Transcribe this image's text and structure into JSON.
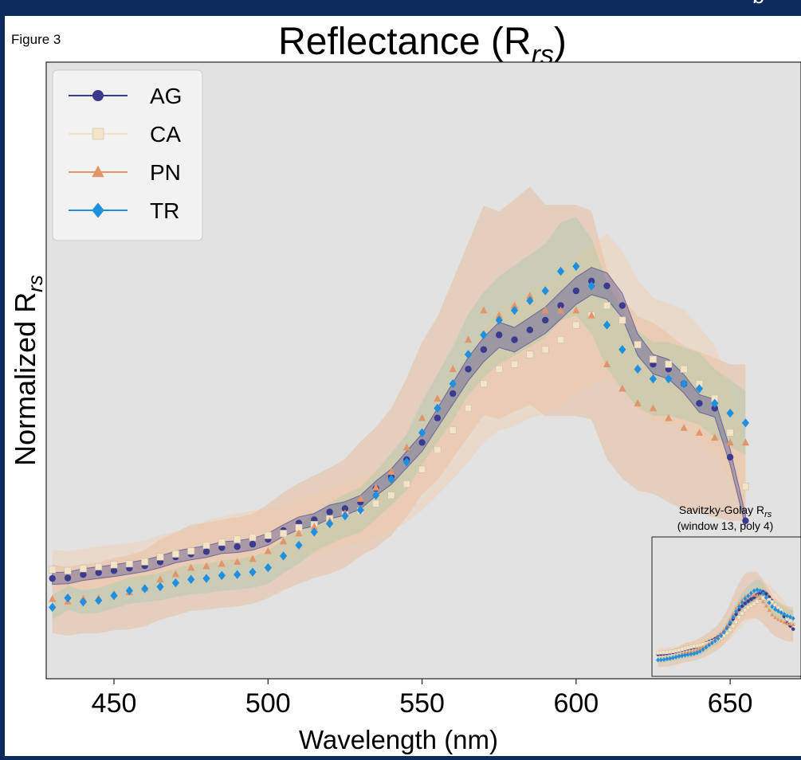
{
  "figure_label": "Figure 3",
  "corner_glyph": "b",
  "chart_data": [
    {
      "type": "scatter",
      "title": "Reflectance (R",
      "title_sub": "rs",
      "title_end": ")",
      "xlabel": "Wavelength (nm)",
      "ylabel": "Normalized R",
      "ylabel_sub": "rs",
      "xlim": [
        428,
        673
      ],
      "ylim": [
        0,
        1
      ],
      "y_ticks_shown": false,
      "xticks": [
        450,
        500,
        550,
        600,
        650
      ],
      "grid": false,
      "legend_position": "top-left",
      "x": [
        430,
        435,
        440,
        445,
        450,
        455,
        460,
        465,
        470,
        475,
        480,
        485,
        490,
        495,
        500,
        505,
        510,
        515,
        520,
        525,
        530,
        535,
        540,
        545,
        550,
        555,
        560,
        565,
        570,
        575,
        580,
        585,
        590,
        595,
        600,
        605,
        610,
        615,
        620,
        625,
        630,
        635,
        640,
        645,
        650,
        655
      ],
      "series": [
        {
          "name": "AG",
          "color": "#3b3a8f",
          "marker": "circle",
          "values": [
            0.142,
            0.143,
            0.15,
            0.154,
            0.158,
            0.163,
            0.168,
            0.176,
            0.186,
            0.192,
            0.197,
            0.205,
            0.207,
            0.212,
            0.222,
            0.24,
            0.255,
            0.262,
            0.278,
            0.285,
            0.298,
            0.326,
            0.35,
            0.385,
            0.42,
            0.47,
            0.52,
            0.57,
            0.61,
            0.64,
            0.63,
            0.65,
            0.67,
            0.7,
            0.73,
            0.75,
            0.74,
            0.7,
            0.62,
            0.58,
            0.57,
            0.54,
            0.5,
            0.49,
            0.39,
            0.26
          ]
        },
        {
          "name": "CA",
          "color": "#f3e4c8",
          "marker": "square",
          "values": [
            0.16,
            0.158,
            0.162,
            0.166,
            0.17,
            0.172,
            0.176,
            0.186,
            0.192,
            0.198,
            0.21,
            0.216,
            0.222,
            0.226,
            0.23,
            0.234,
            0.246,
            0.252,
            0.264,
            0.272,
            0.28,
            0.295,
            0.312,
            0.335,
            0.365,
            0.405,
            0.445,
            0.49,
            0.54,
            0.57,
            0.58,
            0.6,
            0.61,
            0.63,
            0.66,
            0.68,
            0.7,
            0.67,
            0.62,
            0.59,
            0.58,
            0.57,
            0.54,
            0.51,
            0.44,
            0.33
          ]
        },
        {
          "name": "PN",
          "color": "#e2956b",
          "marker": "triangle",
          "values": [
            0.1,
            0.095,
            0.101,
            0.102,
            0.11,
            0.114,
            0.122,
            0.14,
            0.151,
            0.164,
            0.167,
            0.172,
            0.176,
            0.182,
            0.198,
            0.218,
            0.234,
            0.248,
            0.26,
            0.275,
            0.305,
            0.328,
            0.36,
            0.41,
            0.47,
            0.51,
            0.57,
            0.63,
            0.69,
            0.68,
            0.7,
            0.72,
            0.69,
            0.69,
            0.69,
            0.68,
            0.58,
            0.53,
            0.5,
            0.49,
            0.47,
            0.45,
            0.44,
            0.43,
            0.42,
            0.42
          ]
        },
        {
          "name": "TR",
          "color": "#1f8fe0",
          "marker": "diamond",
          "values": [
            0.083,
            0.102,
            0.094,
            0.097,
            0.107,
            0.117,
            0.121,
            0.125,
            0.133,
            0.14,
            0.142,
            0.148,
            0.15,
            0.155,
            0.164,
            0.188,
            0.21,
            0.237,
            0.254,
            0.27,
            0.282,
            0.312,
            0.345,
            0.38,
            0.44,
            0.49,
            0.54,
            0.6,
            0.64,
            0.67,
            0.69,
            0.71,
            0.73,
            0.77,
            0.78,
            0.74,
            0.66,
            0.61,
            0.57,
            0.55,
            0.55,
            0.54,
            0.53,
            0.5,
            0.48,
            0.46
          ]
        }
      ],
      "bands": [
        {
          "name": "AG",
          "color": "#3b3a8f",
          "lower": [
            0.13,
            0.131,
            0.138,
            0.142,
            0.146,
            0.151,
            0.156,
            0.164,
            0.174,
            0.18,
            0.185,
            0.193,
            0.195,
            0.2,
            0.21,
            0.228,
            0.242,
            0.249,
            0.264,
            0.271,
            0.284,
            0.311,
            0.334,
            0.368,
            0.402,
            0.45,
            0.498,
            0.546,
            0.585,
            0.614,
            0.605,
            0.624,
            0.643,
            0.672,
            0.702,
            0.722,
            0.713,
            0.675,
            0.598,
            0.56,
            0.55,
            0.521,
            0.482,
            0.472,
            0.374,
            0.248
          ],
          "upper": [
            0.154,
            0.155,
            0.162,
            0.166,
            0.17,
            0.175,
            0.18,
            0.188,
            0.198,
            0.204,
            0.209,
            0.217,
            0.219,
            0.224,
            0.234,
            0.252,
            0.268,
            0.275,
            0.292,
            0.299,
            0.312,
            0.341,
            0.366,
            0.402,
            0.438,
            0.49,
            0.542,
            0.594,
            0.635,
            0.666,
            0.655,
            0.676,
            0.697,
            0.728,
            0.758,
            0.778,
            0.767,
            0.725,
            0.642,
            0.6,
            0.59,
            0.559,
            0.518,
            0.508,
            0.406,
            0.272
          ]
        },
        {
          "name": "CA",
          "color": "#f3c9a0",
          "lower": [
            0.12,
            0.118,
            0.122,
            0.125,
            0.128,
            0.13,
            0.133,
            0.141,
            0.146,
            0.15,
            0.16,
            0.164,
            0.169,
            0.172,
            0.175,
            0.178,
            0.188,
            0.192,
            0.202,
            0.208,
            0.214,
            0.226,
            0.239,
            0.257,
            0.281,
            0.312,
            0.344,
            0.38,
            0.42,
            0.445,
            0.453,
            0.47,
            0.478,
            0.495,
            0.52,
            0.536,
            0.553,
            0.528,
            0.488,
            0.464,
            0.456,
            0.448,
            0.424,
            0.4,
            0.344,
            0.255
          ],
          "upper": [
            0.2,
            0.198,
            0.202,
            0.207,
            0.212,
            0.214,
            0.219,
            0.231,
            0.238,
            0.246,
            0.26,
            0.268,
            0.275,
            0.28,
            0.285,
            0.29,
            0.304,
            0.312,
            0.326,
            0.336,
            0.346,
            0.364,
            0.385,
            0.413,
            0.449,
            0.498,
            0.546,
            0.6,
            0.66,
            0.695,
            0.707,
            0.73,
            0.742,
            0.765,
            0.8,
            0.824,
            0.847,
            0.812,
            0.752,
            0.716,
            0.704,
            0.692,
            0.656,
            0.62,
            0.536,
            0.405
          ]
        },
        {
          "name": "PN",
          "color": "#e8a878",
          "lower": [
            0.03,
            0.025,
            0.03,
            0.03,
            0.036,
            0.038,
            0.044,
            0.058,
            0.066,
            0.076,
            0.078,
            0.082,
            0.085,
            0.09,
            0.102,
            0.118,
            0.131,
            0.143,
            0.152,
            0.164,
            0.188,
            0.205,
            0.23,
            0.268,
            0.314,
            0.343,
            0.388,
            0.432,
            0.476,
            0.468,
            0.483,
            0.497,
            0.474,
            0.474,
            0.474,
            0.467,
            0.386,
            0.346,
            0.322,
            0.315,
            0.298,
            0.282,
            0.275,
            0.267,
            0.26,
            0.26
          ],
          "upper": [
            0.17,
            0.165,
            0.172,
            0.174,
            0.184,
            0.19,
            0.2,
            0.222,
            0.236,
            0.252,
            0.256,
            0.262,
            0.267,
            0.274,
            0.294,
            0.318,
            0.337,
            0.353,
            0.368,
            0.386,
            0.422,
            0.451,
            0.49,
            0.552,
            0.626,
            0.677,
            0.752,
            0.828,
            0.904,
            0.892,
            0.917,
            0.943,
            0.906,
            0.906,
            0.906,
            0.893,
            0.774,
            0.714,
            0.678,
            0.665,
            0.642,
            0.618,
            0.605,
            0.593,
            0.58,
            0.58
          ]
        },
        {
          "name": "TR",
          "color": "#7fc8a0",
          "lower": [
            0.058,
            0.077,
            0.07,
            0.072,
            0.081,
            0.09,
            0.094,
            0.097,
            0.104,
            0.11,
            0.112,
            0.117,
            0.119,
            0.123,
            0.131,
            0.153,
            0.172,
            0.197,
            0.212,
            0.226,
            0.236,
            0.263,
            0.292,
            0.323,
            0.376,
            0.42,
            0.465,
            0.517,
            0.553,
            0.58,
            0.598,
            0.616,
            0.634,
            0.67,
            0.679,
            0.643,
            0.572,
            0.528,
            0.492,
            0.475,
            0.475,
            0.466,
            0.457,
            0.43,
            0.412,
            0.395
          ],
          "upper": [
            0.108,
            0.127,
            0.118,
            0.122,
            0.133,
            0.144,
            0.148,
            0.153,
            0.162,
            0.17,
            0.172,
            0.179,
            0.181,
            0.187,
            0.197,
            0.223,
            0.248,
            0.277,
            0.296,
            0.314,
            0.328,
            0.361,
            0.398,
            0.437,
            0.504,
            0.56,
            0.615,
            0.683,
            0.727,
            0.76,
            0.782,
            0.804,
            0.826,
            0.87,
            0.881,
            0.837,
            0.748,
            0.692,
            0.648,
            0.625,
            0.625,
            0.614,
            0.603,
            0.57,
            0.548,
            0.525
          ]
        }
      ]
    },
    {
      "type": "scatter",
      "title_line1": "Savitzky-Golay R",
      "title_line1_sub": "rs",
      "title_line2": "(window 13, poly 4)",
      "smoothed_from": "main"
    }
  ]
}
